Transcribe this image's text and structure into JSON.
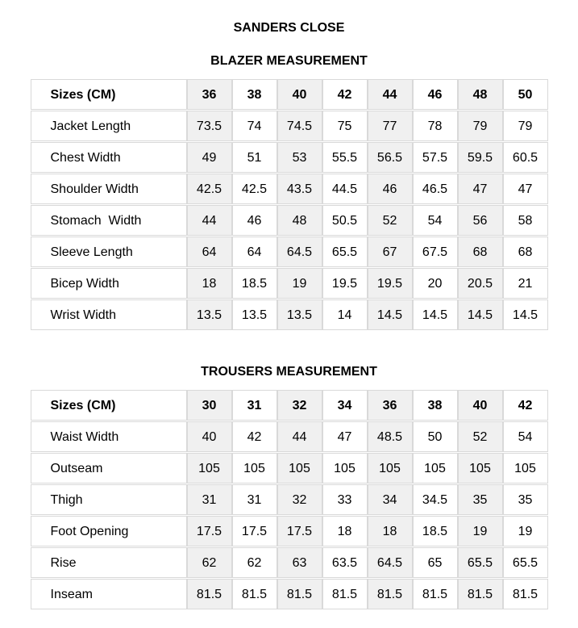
{
  "page": {
    "title": "SANDERS CLOSE"
  },
  "colors": {
    "stripe_background": "#f0f0f0",
    "cell_border": "#d9d9d9",
    "text": "#000000"
  },
  "tables": [
    {
      "title": "BLAZER MEASUREMENT",
      "header_label": "Sizes (CM)",
      "sizes": [
        "36",
        "38",
        "40",
        "42",
        "44",
        "46",
        "48",
        "50"
      ],
      "rows": [
        {
          "label": "Jacket Length",
          "values": [
            "73.5",
            "74",
            "74.5",
            "75",
            "77",
            "78",
            "79",
            "79"
          ]
        },
        {
          "label": "Chest Width",
          "values": [
            "49",
            "51",
            "53",
            "55.5",
            "56.5",
            "57.5",
            "59.5",
            "60.5"
          ]
        },
        {
          "label": "Shoulder Width",
          "values": [
            "42.5",
            "42.5",
            "43.5",
            "44.5",
            "46",
            "46.5",
            "47",
            "47"
          ]
        },
        {
          "label": "Stomach  Width",
          "values": [
            "44",
            "46",
            "48",
            "50.5",
            "52",
            "54",
            "56",
            "58"
          ]
        },
        {
          "label": "Sleeve Length",
          "values": [
            "64",
            "64",
            "64.5",
            "65.5",
            "67",
            "67.5",
            "68",
            "68"
          ]
        },
        {
          "label": "Bicep Width",
          "values": [
            "18",
            "18.5",
            "19",
            "19.5",
            "19.5",
            "20",
            "20.5",
            "21"
          ]
        },
        {
          "label": "Wrist Width",
          "values": [
            "13.5",
            "13.5",
            "13.5",
            "14",
            "14.5",
            "14.5",
            "14.5",
            "14.5"
          ]
        }
      ]
    },
    {
      "title": "TROUSERS MEASUREMENT",
      "header_label": "Sizes (CM)",
      "sizes": [
        "30",
        "31",
        "32",
        "34",
        "36",
        "38",
        "40",
        "42"
      ],
      "rows": [
        {
          "label": "Waist Width",
          "values": [
            "40",
            "42",
            "44",
            "47",
            "48.5",
            "50",
            "52",
            "54"
          ]
        },
        {
          "label": "Outseam",
          "values": [
            "105",
            "105",
            "105",
            "105",
            "105",
            "105",
            "105",
            "105"
          ]
        },
        {
          "label": "Thigh",
          "values": [
            "31",
            "31",
            "32",
            "33",
            "34",
            "34.5",
            "35",
            "35"
          ]
        },
        {
          "label": "Foot Opening",
          "values": [
            "17.5",
            "17.5",
            "17.5",
            "18",
            "18",
            "18.5",
            "19",
            "19"
          ]
        },
        {
          "label": "Rise",
          "values": [
            "62",
            "62",
            "63",
            "63.5",
            "64.5",
            "65",
            "65.5",
            "65.5"
          ]
        },
        {
          "label": "Inseam",
          "values": [
            "81.5",
            "81.5",
            "81.5",
            "81.5",
            "81.5",
            "81.5",
            "81.5",
            "81.5"
          ]
        }
      ]
    }
  ]
}
